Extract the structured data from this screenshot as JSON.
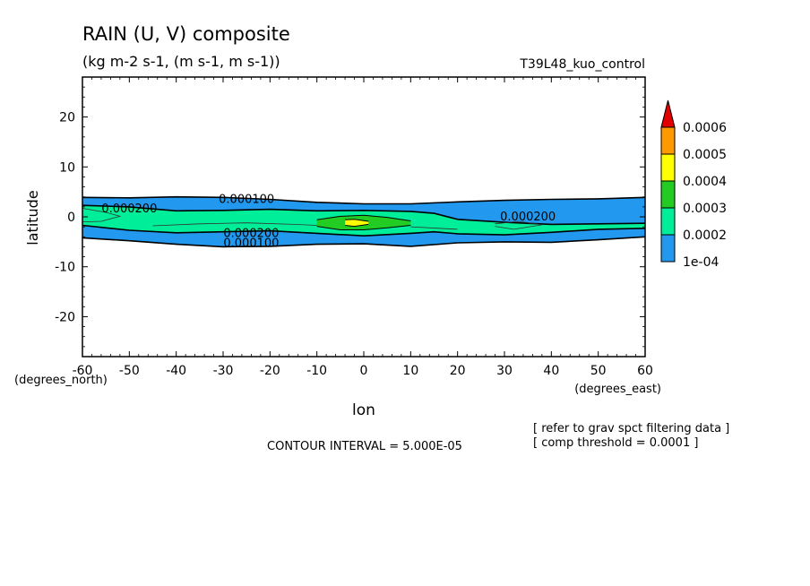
{
  "chart_data": {
    "type": "contour",
    "title": "RAIN (U, V) composite",
    "subtitle": "(kg m-2 s-1, (m s-1, m s-1))",
    "run_label": "T39L48_kuo_control",
    "xlabel": "lon",
    "ylabel": "latitude",
    "x_units": "(degrees_east)",
    "y_units": "(degrees_north)",
    "xlim": [
      -60,
      60
    ],
    "ylim": [
      -28,
      28
    ],
    "x_ticks": [
      "-60",
      "-50",
      "-40",
      "-30",
      "-20",
      "-10",
      "0",
      "10",
      "20",
      "30",
      "40",
      "50",
      "60"
    ],
    "y_ticks": [
      "20",
      "10",
      "0",
      "-10",
      "-20"
    ],
    "contour_interval_text": "CONTOUR INTERVAL = 5.000E-05",
    "notes": [
      "[ refer to grav spct filtering data ]",
      "[ comp threshold = 0.0001 ]"
    ],
    "colorbar": {
      "labels": [
        "0.0006",
        "0.0005",
        "0.0004",
        "0.0003",
        "0.0002",
        "1e-04"
      ],
      "colors": [
        "#e00000",
        "#ff9900",
        "#ffff00",
        "#22cc22",
        "#00ee99",
        "#2299ee"
      ]
    },
    "contour_labels": [
      {
        "text": "0.000100",
        "lon": -25,
        "lat": 3.7
      },
      {
        "text": "0.000200",
        "lon": -50,
        "lat": 1.8
      },
      {
        "text": "0.000200",
        "lon": 35,
        "lat": 0.2
      },
      {
        "text": "0.000200",
        "lon": -24,
        "lat": -3.1
      },
      {
        "text": "0.000100",
        "lon": -24,
        "lat": -5.1
      }
    ],
    "bands": [
      {
        "level": 0.0001,
        "color": "#2299ee",
        "upper": [
          [
            -60,
            3.9
          ],
          [
            -50,
            3.8
          ],
          [
            -40,
            4.0
          ],
          [
            -30,
            3.9
          ],
          [
            -20,
            3.5
          ],
          [
            -10,
            2.9
          ],
          [
            0,
            2.6
          ],
          [
            10,
            2.6
          ],
          [
            20,
            3.0
          ],
          [
            30,
            3.3
          ],
          [
            40,
            3.5
          ],
          [
            50,
            3.6
          ],
          [
            60,
            3.9
          ]
        ],
        "lower": [
          [
            -60,
            -4.2
          ],
          [
            -50,
            -4.8
          ],
          [
            -40,
            -5.5
          ],
          [
            -30,
            -6.0
          ],
          [
            -20,
            -5.9
          ],
          [
            -10,
            -5.5
          ],
          [
            0,
            -5.4
          ],
          [
            10,
            -5.9
          ],
          [
            20,
            -5.2
          ],
          [
            30,
            -5.0
          ],
          [
            40,
            -5.1
          ],
          [
            50,
            -4.6
          ],
          [
            60,
            -4.0
          ]
        ]
      },
      {
        "level": 0.0002,
        "color": "#00ee99",
        "upper": [
          [
            -60,
            2.3
          ],
          [
            -50,
            2.0
          ],
          [
            -40,
            1.2
          ],
          [
            -30,
            1.3
          ],
          [
            -20,
            1.5
          ],
          [
            -10,
            1.2
          ],
          [
            0,
            1.3
          ],
          [
            10,
            1.1
          ],
          [
            15,
            0.7
          ],
          [
            20,
            -0.5
          ],
          [
            30,
            -1.1
          ],
          [
            40,
            -1.5
          ],
          [
            50,
            -1.4
          ],
          [
            60,
            -1.3
          ]
        ],
        "lower": [
          [
            -60,
            -1.7
          ],
          [
            -50,
            -2.7
          ],
          [
            -40,
            -3.2
          ],
          [
            -30,
            -3.0
          ],
          [
            -20,
            -2.8
          ],
          [
            -10,
            -3.3
          ],
          [
            0,
            -3.8
          ],
          [
            10,
            -3.3
          ],
          [
            15,
            -3.0
          ],
          [
            20,
            -3.4
          ],
          [
            30,
            -3.6
          ],
          [
            40,
            -3.1
          ],
          [
            50,
            -2.5
          ],
          [
            60,
            -2.3
          ]
        ]
      },
      {
        "level": 0.0003,
        "color": "#22cc22",
        "upper": [
          [
            -10,
            -0.6
          ],
          [
            -5,
            0.1
          ],
          [
            0,
            0.3
          ],
          [
            5,
            -0.1
          ],
          [
            10,
            -0.8
          ]
        ],
        "lower": [
          [
            -10,
            -1.9
          ],
          [
            -5,
            -2.6
          ],
          [
            0,
            -2.6
          ],
          [
            5,
            -2.2
          ],
          [
            10,
            -1.7
          ]
        ]
      },
      {
        "level": 0.0004,
        "color": "#ffff00",
        "upper": [
          [
            -4,
            -0.6
          ],
          [
            -2,
            -0.5
          ],
          [
            1,
            -0.9
          ]
        ],
        "lower": [
          [
            -4,
            -1.7
          ],
          [
            -2,
            -1.9
          ],
          [
            1,
            -1.5
          ]
        ]
      }
    ],
    "thin_contours": [
      [
        [
          -60,
          1.7
        ],
        [
          -55,
          0.9
        ],
        [
          -52,
          0.1
        ],
        [
          -56,
          -0.9
        ],
        [
          -60,
          -1.0
        ]
      ],
      [
        [
          -45,
          -1.8
        ],
        [
          -35,
          -1.4
        ],
        [
          -25,
          -1.2
        ],
        [
          -15,
          -1.5
        ],
        [
          -10,
          -1.7
        ]
      ],
      [
        [
          28,
          -1.4
        ],
        [
          33,
          -0.9
        ],
        [
          38,
          -1.6
        ],
        [
          32,
          -2.5
        ],
        [
          28,
          -1.9
        ]
      ],
      [
        [
          10,
          -2.0
        ],
        [
          16,
          -2.3
        ],
        [
          20,
          -2.5
        ]
      ]
    ]
  }
}
